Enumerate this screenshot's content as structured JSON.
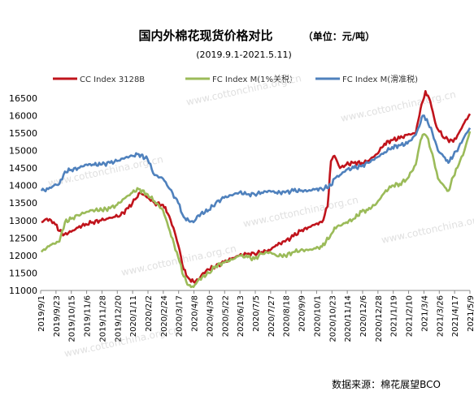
{
  "chart_data": {
    "type": "line",
    "title": "国内外棉花现货价格对比",
    "unit": "（单位：元/吨）",
    "subtitle": "(2019.9.1-2021.5.11)",
    "source": "数据来源：棉花展望BCO",
    "watermark": "www.cottonchina.org.cn",
    "ylim": [
      11000,
      16800
    ],
    "yticks": [
      11000,
      11500,
      12000,
      12500,
      13000,
      13500,
      14000,
      14500,
      15000,
      15500,
      16000,
      16500
    ],
    "xlim": [
      "2019-09-01",
      "2021-05-11"
    ],
    "x_tick_labels": [
      "2019/9/1",
      "2019/9/23",
      "2019/10/15",
      "2019/11/6",
      "2019/11/28",
      "2019/12/20",
      "2020/1/11",
      "2020/2/2",
      "2020/2/24",
      "2020/3/17",
      "2020/4/8",
      "2020/4/30",
      "2020/5/22",
      "2020/6/13",
      "2020/7/5",
      "2020/7/27",
      "2020/8/18",
      "2020/9/9",
      "2020/10/1",
      "2020/10/23",
      "2020/11/14",
      "2020/12/6",
      "2020/12/28",
      "2021/1/19",
      "2021/2/10",
      "2021/3/4",
      "2021/3/26",
      "2021/4/17",
      "2021/5/9"
    ],
    "legend_position": "top",
    "grid": false,
    "series": [
      {
        "name": "CC Index 3128B",
        "color": "#c0141c",
        "points": [
          [
            "2019-09-02",
            12950
          ],
          [
            "2019-09-10",
            13050
          ],
          [
            "2019-09-20",
            12950
          ],
          [
            "2019-09-28",
            12700
          ],
          [
            "2019-10-05",
            12600
          ],
          [
            "2019-10-15",
            12680
          ],
          [
            "2019-10-25",
            12800
          ],
          [
            "2019-11-05",
            12900
          ],
          [
            "2019-11-15",
            12950
          ],
          [
            "2019-11-25",
            13000
          ],
          [
            "2019-12-05",
            13050
          ],
          [
            "2019-12-15",
            13100
          ],
          [
            "2019-12-25",
            13150
          ],
          [
            "2020-01-05",
            13350
          ],
          [
            "2020-01-15",
            13600
          ],
          [
            "2020-01-22",
            13800
          ],
          [
            "2020-02-03",
            13650
          ],
          [
            "2020-02-12",
            13500
          ],
          [
            "2020-02-24",
            13450
          ],
          [
            "2020-03-02",
            13200
          ],
          [
            "2020-03-10",
            12800
          ],
          [
            "2020-03-17",
            12300
          ],
          [
            "2020-03-25",
            11600
          ],
          [
            "2020-04-01",
            11350
          ],
          [
            "2020-04-08",
            11250
          ],
          [
            "2020-04-15",
            11300
          ],
          [
            "2020-04-22",
            11500
          ],
          [
            "2020-04-30",
            11600
          ],
          [
            "2020-05-10",
            11700
          ],
          [
            "2020-05-22",
            11800
          ],
          [
            "2020-06-01",
            11900
          ],
          [
            "2020-06-13",
            12000
          ],
          [
            "2020-06-25",
            12050
          ],
          [
            "2020-07-05",
            12050
          ],
          [
            "2020-07-15",
            12100
          ],
          [
            "2020-07-27",
            12150
          ],
          [
            "2020-08-05",
            12300
          ],
          [
            "2020-08-18",
            12400
          ],
          [
            "2020-08-30",
            12550
          ],
          [
            "2020-09-09",
            12700
          ],
          [
            "2020-09-20",
            12800
          ],
          [
            "2020-10-01",
            12900
          ],
          [
            "2020-10-10",
            12950
          ],
          [
            "2020-10-18",
            13400
          ],
          [
            "2020-10-23",
            14700
          ],
          [
            "2020-10-28",
            14850
          ],
          [
            "2020-11-05",
            14500
          ],
          [
            "2020-11-14",
            14600
          ],
          [
            "2020-11-25",
            14650
          ],
          [
            "2020-12-06",
            14650
          ],
          [
            "2020-12-15",
            14700
          ],
          [
            "2020-12-28",
            14900
          ],
          [
            "2021-01-08",
            15200
          ],
          [
            "2021-01-19",
            15300
          ],
          [
            "2021-01-30",
            15350
          ],
          [
            "2021-02-10",
            15450
          ],
          [
            "2021-02-22",
            15500
          ],
          [
            "2021-03-01",
            16200
          ],
          [
            "2021-03-04",
            16400
          ],
          [
            "2021-03-08",
            16700
          ],
          [
            "2021-03-15",
            16400
          ],
          [
            "2021-03-22",
            15800
          ],
          [
            "2021-03-26",
            15600
          ],
          [
            "2021-04-05",
            15350
          ],
          [
            "2021-04-17",
            15250
          ],
          [
            "2021-04-25",
            15500
          ],
          [
            "2021-05-03",
            15800
          ],
          [
            "2021-05-11",
            16050
          ]
        ]
      },
      {
        "name": "FC Index M(1%关税)",
        "color": "#9bbb59",
        "points": [
          [
            "2019-09-02",
            12100
          ],
          [
            "2019-09-15",
            12300
          ],
          [
            "2019-09-28",
            12400
          ],
          [
            "2019-10-06",
            12950
          ],
          [
            "2019-10-15",
            13050
          ],
          [
            "2019-10-25",
            13150
          ],
          [
            "2019-11-06",
            13250
          ],
          [
            "2019-11-15",
            13300
          ],
          [
            "2019-11-28",
            13300
          ],
          [
            "2019-12-10",
            13350
          ],
          [
            "2019-12-20",
            13450
          ],
          [
            "2020-01-01",
            13650
          ],
          [
            "2020-01-11",
            13800
          ],
          [
            "2020-01-20",
            13900
          ],
          [
            "2020-02-02",
            13750
          ],
          [
            "2020-02-12",
            13550
          ],
          [
            "2020-02-24",
            13300
          ],
          [
            "2020-03-05",
            12700
          ],
          [
            "2020-03-17",
            11950
          ],
          [
            "2020-03-25",
            11400
          ],
          [
            "2020-04-01",
            11150
          ],
          [
            "2020-04-08",
            11100
          ],
          [
            "2020-04-15",
            11300
          ],
          [
            "2020-04-30",
            11500
          ],
          [
            "2020-05-10",
            11700
          ],
          [
            "2020-05-22",
            11800
          ],
          [
            "2020-06-05",
            11900
          ],
          [
            "2020-06-13",
            12000
          ],
          [
            "2020-06-25",
            11950
          ],
          [
            "2020-07-05",
            11900
          ],
          [
            "2020-07-15",
            12050
          ],
          [
            "2020-07-27",
            12100
          ],
          [
            "2020-08-05",
            12000
          ],
          [
            "2020-08-18",
            12000
          ],
          [
            "2020-08-30",
            12100
          ],
          [
            "2020-09-09",
            12150
          ],
          [
            "2020-09-20",
            12150
          ],
          [
            "2020-10-01",
            12200
          ],
          [
            "2020-10-10",
            12250
          ],
          [
            "2020-10-23",
            12600
          ],
          [
            "2020-10-28",
            12800
          ],
          [
            "2020-11-05",
            12850
          ],
          [
            "2020-11-14",
            12950
          ],
          [
            "2020-11-25",
            13050
          ],
          [
            "2020-12-06",
            13250
          ],
          [
            "2020-12-15",
            13300
          ],
          [
            "2020-12-28",
            13500
          ],
          [
            "2021-01-08",
            13800
          ],
          [
            "2021-01-19",
            14000
          ],
          [
            "2021-01-30",
            14050
          ],
          [
            "2021-02-10",
            14200
          ],
          [
            "2021-02-22",
            14600
          ],
          [
            "2021-03-01",
            15300
          ],
          [
            "2021-03-04",
            15450
          ],
          [
            "2021-03-10",
            15400
          ],
          [
            "2021-03-18",
            14900
          ],
          [
            "2021-03-26",
            14200
          ],
          [
            "2021-04-05",
            13950
          ],
          [
            "2021-04-10",
            13850
          ],
          [
            "2021-04-17",
            14250
          ],
          [
            "2021-04-25",
            14600
          ],
          [
            "2021-05-03",
            15000
          ],
          [
            "2021-05-11",
            15550
          ]
        ]
      },
      {
        "name": "FC Index M(滑准税)",
        "color": "#4f81bd",
        "points": [
          [
            "2019-09-02",
            13850
          ],
          [
            "2019-09-12",
            13900
          ],
          [
            "2019-09-20",
            14000
          ],
          [
            "2019-09-28",
            14050
          ],
          [
            "2019-10-06",
            14400
          ],
          [
            "2019-10-15",
            14450
          ],
          [
            "2019-10-25",
            14500
          ],
          [
            "2019-11-06",
            14600
          ],
          [
            "2019-11-15",
            14600
          ],
          [
            "2019-11-28",
            14600
          ],
          [
            "2019-12-10",
            14650
          ],
          [
            "2019-12-20",
            14700
          ],
          [
            "2020-01-01",
            14800
          ],
          [
            "2020-01-11",
            14850
          ],
          [
            "2020-01-20",
            14900
          ],
          [
            "2020-02-02",
            14750
          ],
          [
            "2020-02-12",
            14300
          ],
          [
            "2020-02-24",
            14200
          ],
          [
            "2020-03-05",
            13900
          ],
          [
            "2020-03-17",
            13500
          ],
          [
            "2020-03-25",
            13100
          ],
          [
            "2020-04-01",
            13000
          ],
          [
            "2020-04-08",
            12950
          ],
          [
            "2020-04-15",
            13150
          ],
          [
            "2020-04-30",
            13300
          ],
          [
            "2020-05-10",
            13500
          ],
          [
            "2020-05-22",
            13650
          ],
          [
            "2020-06-05",
            13750
          ],
          [
            "2020-06-13",
            13800
          ],
          [
            "2020-06-25",
            13750
          ],
          [
            "2020-07-05",
            13750
          ],
          [
            "2020-07-15",
            13800
          ],
          [
            "2020-07-27",
            13850
          ],
          [
            "2020-08-05",
            13800
          ],
          [
            "2020-08-18",
            13800
          ],
          [
            "2020-08-30",
            13850
          ],
          [
            "2020-09-09",
            13850
          ],
          [
            "2020-09-20",
            13850
          ],
          [
            "2020-10-01",
            13900
          ],
          [
            "2020-10-10",
            13900
          ],
          [
            "2020-10-23",
            14000
          ],
          [
            "2020-10-28",
            14200
          ],
          [
            "2020-11-05",
            14300
          ],
          [
            "2020-11-14",
            14450
          ],
          [
            "2020-11-25",
            14500
          ],
          [
            "2020-12-06",
            14550
          ],
          [
            "2020-12-15",
            14650
          ],
          [
            "2020-12-28",
            14800
          ],
          [
            "2021-01-08",
            14950
          ],
          [
            "2021-01-19",
            15100
          ],
          [
            "2021-01-30",
            15150
          ],
          [
            "2021-02-10",
            15200
          ],
          [
            "2021-02-22",
            15450
          ],
          [
            "2021-03-01",
            15800
          ],
          [
            "2021-03-04",
            16000
          ],
          [
            "2021-03-10",
            15900
          ],
          [
            "2021-03-18",
            15500
          ],
          [
            "2021-03-26",
            15000
          ],
          [
            "2021-04-05",
            14800
          ],
          [
            "2021-04-10",
            14650
          ],
          [
            "2021-04-17",
            14850
          ],
          [
            "2021-04-25",
            15100
          ],
          [
            "2021-05-03",
            15400
          ],
          [
            "2021-05-11",
            15650
          ]
        ]
      }
    ]
  }
}
